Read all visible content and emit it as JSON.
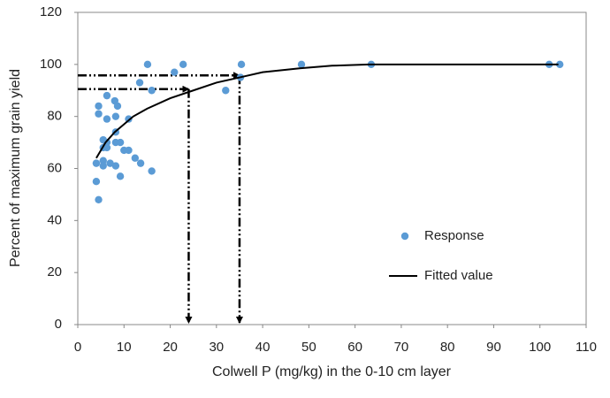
{
  "chart_data": {
    "type": "scatter",
    "x_label": "Colwell P (mg/kg) in the 0-10 cm layer",
    "y_label": "Percent of maximum grain yield",
    "xlim": [
      0,
      110
    ],
    "xticks": [
      0,
      10,
      20,
      30,
      40,
      50,
      60,
      70,
      80,
      90,
      100,
      110
    ],
    "ylim": [
      0,
      120
    ],
    "yticks": [
      0,
      20,
      40,
      60,
      80,
      100,
      120
    ],
    "grid": false,
    "legend": "right",
    "series": [
      {
        "name": "Response",
        "color": "#5b9bd5",
        "style": "markers",
        "x": [
          4,
          4,
          4.5,
          4.5,
          4.5,
          5.5,
          5.5,
          5.5,
          5.5,
          6.3,
          6.3,
          6.3,
          6.3,
          7,
          8,
          8.2,
          8.2,
          8.2,
          8.2,
          8.6,
          9.2,
          9.2,
          10,
          11,
          11,
          12.4,
          13.4,
          13.6,
          15.1,
          16,
          16,
          20.9,
          22.8,
          32,
          35.2,
          35.4,
          48.4,
          63.5,
          102,
          104.3
        ],
        "values": [
          62,
          55,
          84,
          81,
          48,
          71,
          68,
          63,
          61,
          88,
          79,
          70,
          68,
          62,
          86,
          80,
          74,
          70,
          61,
          84,
          70,
          57,
          67,
          79,
          67,
          64,
          93,
          62,
          100,
          90,
          59,
          97,
          100,
          90,
          95,
          100,
          100,
          100,
          100,
          100
        ]
      },
      {
        "name": "Fitted value",
        "color": "#000000",
        "style": "line",
        "x": [
          4,
          6,
          8,
          10,
          12,
          15,
          20,
          25,
          30,
          35,
          40,
          48,
          55,
          63,
          80,
          104
        ],
        "values": [
          64,
          70,
          74,
          77,
          80,
          83,
          87,
          90,
          93,
          95,
          97,
          98.5,
          99.5,
          100,
          100,
          100
        ]
      }
    ],
    "reference_points": {
      "x": [
        24,
        35
      ],
      "values": [
        90.5,
        95.8
      ]
    }
  }
}
